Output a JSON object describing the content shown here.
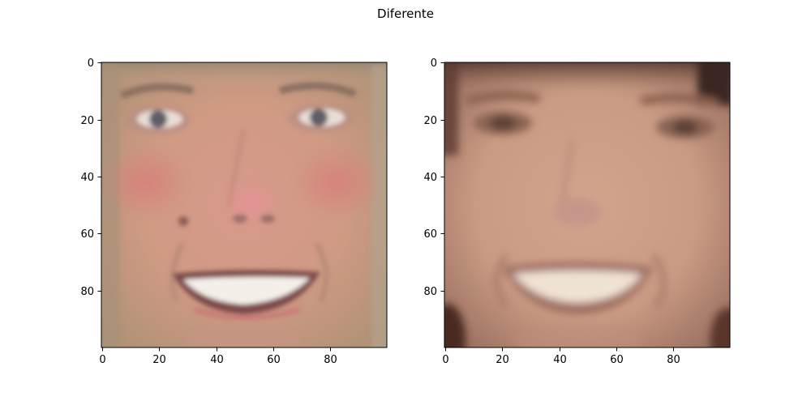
{
  "figure": {
    "title": "Diferente"
  },
  "panels": [
    {
      "image": "face-photo-left",
      "x_ticks": [
        "0",
        "20",
        "40",
        "60",
        "80"
      ],
      "y_ticks": [
        "0",
        "20",
        "40",
        "60",
        "80"
      ]
    },
    {
      "image": "face-photo-right",
      "x_ticks": [
        "0",
        "20",
        "40",
        "60",
        "80"
      ],
      "y_ticks": [
        "0",
        "20",
        "40",
        "60",
        "80"
      ]
    }
  ]
}
